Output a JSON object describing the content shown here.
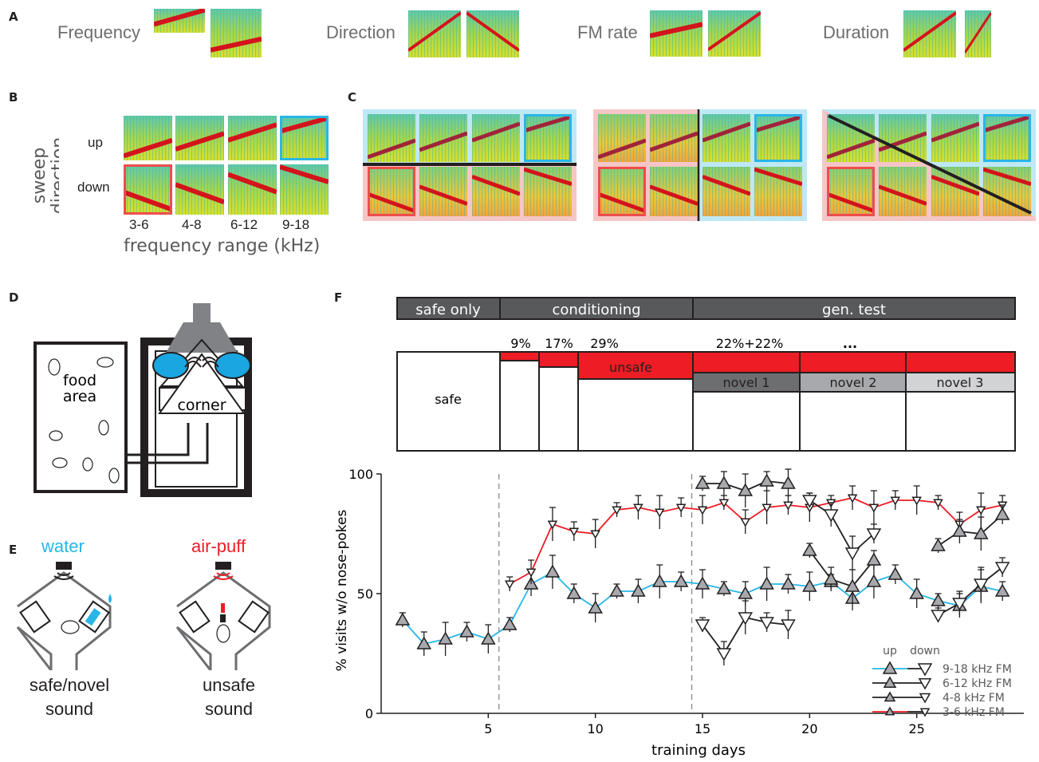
{
  "panels": {
    "a": "A",
    "b": "B",
    "c": "C",
    "d": "D",
    "e": "E",
    "f": "F"
  },
  "panel_a": {
    "labels": [
      "Frequency",
      "Direction",
      "FM rate",
      "Duration"
    ]
  },
  "panel_b": {
    "ylabel_line1": "sweep",
    "ylabel_line2": "direction",
    "row_up": "up",
    "row_down": "down",
    "columns": [
      "3-6",
      "4-8",
      "6-12",
      "9-18"
    ],
    "xlabel": "frequency range (kHz)"
  },
  "panel_d": {
    "food_label_1": "food",
    "food_label_2": "area",
    "corner_label": "corner"
  },
  "panel_e": {
    "water_label": "water",
    "airpuff_label": "air-puff",
    "left_caption_1": "safe/novel",
    "left_caption_2": "sound",
    "right_caption_1": "unsafe",
    "right_caption_2": "sound"
  },
  "panel_f": {
    "phases": [
      "safe only",
      "conditioning",
      "gen. test"
    ],
    "percent_labels": [
      "9%",
      "17%",
      "29%",
      "22%+22%",
      "..."
    ],
    "safe_label": "safe",
    "unsafe_label": "unsafe",
    "novel_labels": [
      "novel 1",
      "novel 2",
      "novel 3"
    ],
    "colors": {
      "unsafe_red": "#ee1c25",
      "phase_gray": "#58595b",
      "novel1": "#6d6e70",
      "novel2": "#a7a9ac",
      "novel3": "#d1d3d4",
      "blue": "#29b6e6"
    }
  },
  "chart_data": {
    "type": "line",
    "xlabel": "training days",
    "ylabel": "% visits w/o nose-pokes",
    "xlim": [
      0,
      30
    ],
    "ylim": [
      0,
      100
    ],
    "xticks": [
      5,
      10,
      15,
      20,
      25
    ],
    "yticks": [
      0,
      50,
      100
    ],
    "vlines": [
      5.5,
      14.5
    ],
    "legend": {
      "header_up": "up",
      "header_down": "down",
      "entries": [
        "9-18 kHz FM",
        "6-12 kHz FM",
        "4-8 kHz FM",
        "3-6 kHz FM"
      ]
    },
    "series": [
      {
        "kind": "safe_up",
        "color": "#29b6e6",
        "x": [
          1,
          2,
          3,
          4,
          5,
          6,
          7,
          8,
          9,
          10,
          11,
          12,
          13,
          14,
          15,
          16,
          17,
          18,
          19,
          20,
          21,
          22,
          23,
          24,
          25,
          26,
          27,
          28,
          29
        ],
        "y": [
          39,
          29,
          31,
          34,
          31,
          37,
          54,
          59,
          50,
          44,
          51,
          51,
          55,
          55,
          54,
          52,
          50,
          54,
          54,
          53,
          55,
          48,
          55,
          58,
          50,
          47,
          45,
          53,
          51
        ]
      },
      {
        "kind": "unsafe_down",
        "color": "#ee1c25",
        "x": [
          6,
          7,
          8,
          9,
          10,
          11,
          12,
          13,
          14,
          15,
          16,
          17,
          18,
          19,
          20,
          21,
          22,
          23,
          24,
          25,
          26,
          27,
          28,
          29
        ],
        "y": [
          54,
          59,
          79,
          76,
          75,
          85,
          86,
          84,
          86,
          85,
          88,
          80,
          86,
          87,
          86,
          88,
          90,
          86,
          89,
          89,
          88,
          79,
          85,
          87
        ]
      },
      {
        "kind": "novel1_up",
        "x": [
          15,
          16,
          17,
          18,
          19
        ],
        "y": [
          96,
          96,
          93,
          97,
          96
        ]
      },
      {
        "kind": "novel1_down",
        "x": [
          15,
          16,
          17,
          18,
          19
        ],
        "y": [
          37,
          25,
          40,
          38,
          37
        ]
      },
      {
        "kind": "novel2_up",
        "x": [
          20,
          21,
          22,
          23
        ],
        "y": [
          68,
          56,
          53,
          64
        ]
      },
      {
        "kind": "novel2_down",
        "x": [
          20,
          21,
          22,
          23
        ],
        "y": [
          89,
          83,
          67,
          75
        ]
      },
      {
        "kind": "novel3_up",
        "x": [
          26,
          27,
          28,
          29
        ],
        "y": [
          70,
          76,
          75,
          83
        ]
      },
      {
        "kind": "novel3_down",
        "x": [
          26,
          27,
          28,
          29
        ],
        "y": [
          41,
          46,
          54,
          61
        ]
      }
    ]
  }
}
